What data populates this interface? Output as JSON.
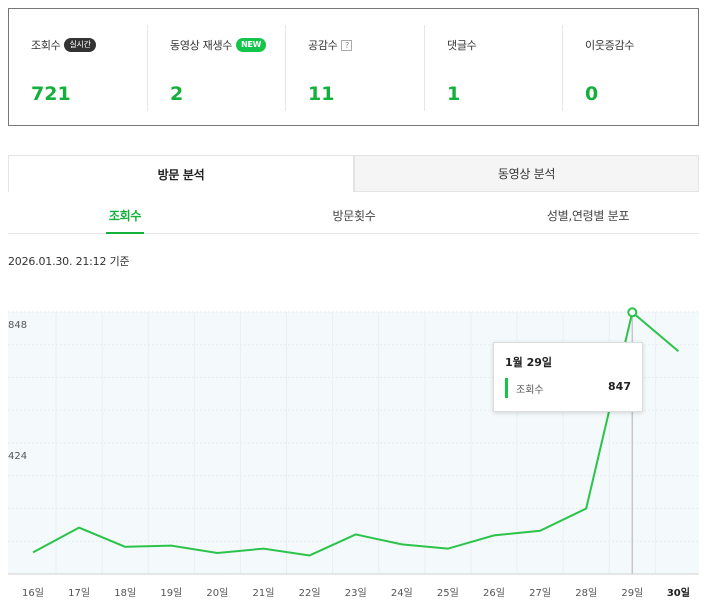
{
  "stats": [
    {
      "label": "조회수",
      "badge": "실시간",
      "badge_type": "live",
      "value": "721"
    },
    {
      "label": "동영상 재생수",
      "badge": "NEW",
      "badge_type": "new",
      "value": "2"
    },
    {
      "label": "공감수",
      "badge": "?",
      "badge_type": "help",
      "value": "11"
    },
    {
      "label": "댓글수",
      "badge": "",
      "badge_type": "",
      "value": "1"
    },
    {
      "label": "이웃증감수",
      "badge": "",
      "badge_type": "",
      "value": "0"
    }
  ],
  "main_tabs": [
    {
      "label": "방문 분석",
      "active": true
    },
    {
      "label": "동영상 분석",
      "active": false
    }
  ],
  "sub_tabs": [
    {
      "label": "조회수",
      "active": true
    },
    {
      "label": "방문횟수",
      "active": false
    },
    {
      "label": "성별,연령별 분포",
      "active": false
    }
  ],
  "timestamp": "2026.01.30. 21:12 기준",
  "tooltip": {
    "date": "1월 29일",
    "series": "조회수",
    "value": "847"
  },
  "colors": {
    "accent": "#13b13b",
    "line": "#2bc34a",
    "plot_bg": "#f4f9fc"
  },
  "chart_data": {
    "type": "line",
    "categories": [
      "16일",
      "17일",
      "18일",
      "19일",
      "20일",
      "21일",
      "22일",
      "23일",
      "24일",
      "25일",
      "26일",
      "27일",
      "28일",
      "29일",
      "30일"
    ],
    "series": [
      {
        "name": "조회수",
        "values": [
          70,
          150,
          88,
          92,
          68,
          82,
          60,
          128,
          96,
          82,
          125,
          140,
          212,
          847,
          721
        ]
      }
    ],
    "ytick_labels": [
      "424",
      "848"
    ],
    "ylim": [
      0,
      848
    ],
    "highlight_index": 13,
    "bold_last_category": true,
    "grid": true
  }
}
